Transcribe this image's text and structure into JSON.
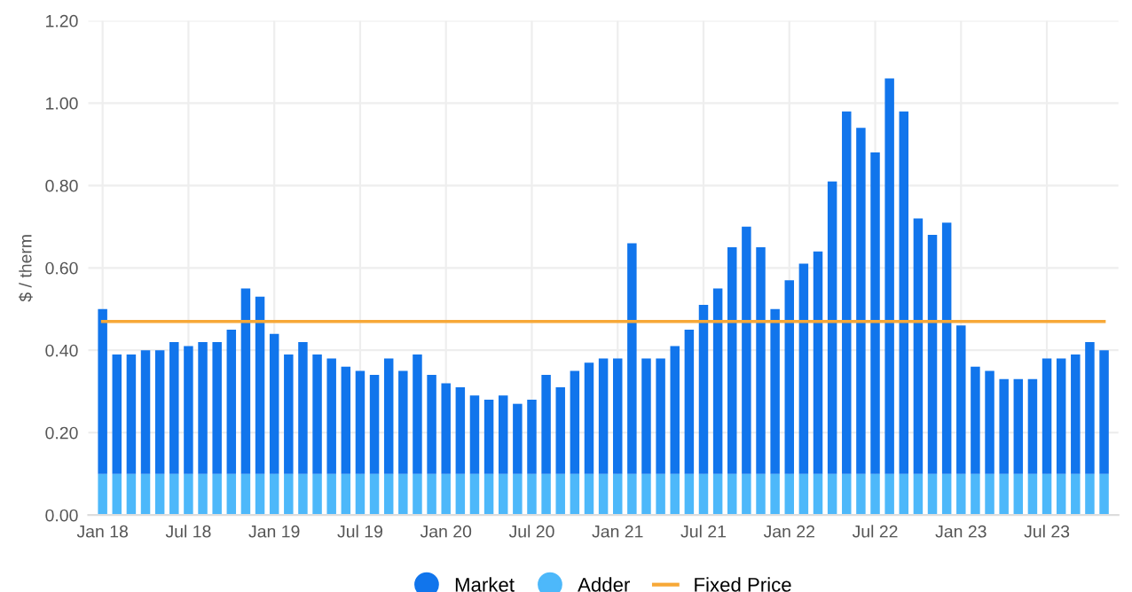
{
  "chart_data": {
    "type": "bar",
    "stacked": true,
    "ylabel": "$ / therm",
    "categories": [
      "Jan 18",
      null,
      null,
      null,
      null,
      null,
      "Jul 18",
      null,
      null,
      null,
      null,
      null,
      "Jan 19",
      null,
      null,
      null,
      null,
      null,
      "Jul 19",
      null,
      null,
      null,
      null,
      null,
      "Jan 20",
      null,
      null,
      null,
      null,
      null,
      "Jul 20",
      null,
      null,
      null,
      null,
      null,
      "Jan 21",
      null,
      null,
      null,
      null,
      null,
      "Jul 21",
      null,
      null,
      null,
      null,
      null,
      "Jan 22",
      null,
      null,
      null,
      null,
      null,
      "Jul 22",
      null,
      null,
      null,
      null,
      null,
      "Jan 23",
      null,
      null,
      null,
      null,
      null,
      "Jul 23",
      null,
      null,
      null,
      null
    ],
    "series": [
      {
        "name": "Adder",
        "color": "#4db8fa",
        "values": [
          0.1,
          0.1,
          0.1,
          0.1,
          0.1,
          0.1,
          0.1,
          0.1,
          0.1,
          0.1,
          0.1,
          0.1,
          0.1,
          0.1,
          0.1,
          0.1,
          0.1,
          0.1,
          0.1,
          0.1,
          0.1,
          0.1,
          0.1,
          0.1,
          0.1,
          0.1,
          0.1,
          0.1,
          0.1,
          0.1,
          0.1,
          0.1,
          0.1,
          0.1,
          0.1,
          0.1,
          0.1,
          0.1,
          0.1,
          0.1,
          0.1,
          0.1,
          0.1,
          0.1,
          0.1,
          0.1,
          0.1,
          0.1,
          0.1,
          0.1,
          0.1,
          0.1,
          0.1,
          0.1,
          0.1,
          0.1,
          0.1,
          0.1,
          0.1,
          0.1,
          0.1,
          0.1,
          0.1,
          0.1,
          0.1,
          0.1,
          0.1,
          0.1,
          0.1,
          0.1,
          0.1
        ]
      },
      {
        "name": "Market",
        "color": "#1175ec",
        "values": [
          0.4,
          0.29,
          0.29,
          0.3,
          0.3,
          0.32,
          0.31,
          0.32,
          0.32,
          0.35,
          0.45,
          0.43,
          0.34,
          0.29,
          0.32,
          0.29,
          0.28,
          0.26,
          0.25,
          0.24,
          0.28,
          0.25,
          0.29,
          0.24,
          0.22,
          0.21,
          0.19,
          0.18,
          0.19,
          0.17,
          0.18,
          0.24,
          0.21,
          0.25,
          0.27,
          0.28,
          0.28,
          0.56,
          0.28,
          0.28,
          0.31,
          0.35,
          0.41,
          0.45,
          0.55,
          0.6,
          0.55,
          0.4,
          0.47,
          0.51,
          0.54,
          0.71,
          0.88,
          0.84,
          0.78,
          0.96,
          0.88,
          0.62,
          0.58,
          0.61,
          0.36,
          0.26,
          0.25,
          0.23,
          0.23,
          0.23,
          0.28,
          0.28,
          0.29,
          0.32,
          0.3
        ]
      },
      {
        "name": "Fixed Price",
        "type": "line",
        "color": "#f7a837",
        "values": [
          0.47,
          0.47,
          0.47,
          0.47,
          0.47,
          0.47,
          0.47,
          0.47,
          0.47,
          0.47,
          0.47,
          0.47,
          0.47,
          0.47,
          0.47,
          0.47,
          0.47,
          0.47,
          0.47,
          0.47,
          0.47,
          0.47,
          0.47,
          0.47,
          0.47,
          0.47,
          0.47,
          0.47,
          0.47,
          0.47,
          0.47,
          0.47,
          0.47,
          0.47,
          0.47,
          0.47,
          0.47,
          0.47,
          0.47,
          0.47,
          0.47,
          0.47,
          0.47,
          0.47,
          0.47,
          0.47,
          0.47,
          0.47,
          0.47,
          0.47,
          0.47,
          0.47,
          0.47,
          0.47,
          0.47,
          0.47,
          0.47,
          0.47,
          0.47,
          0.47,
          0.47,
          0.47,
          0.47,
          0.47,
          0.47,
          0.47,
          0.47,
          0.47,
          0.47,
          0.47,
          0.47
        ]
      }
    ],
    "ylim": [
      0,
      1.2
    ],
    "yticks": [
      {
        "value": 0,
        "label": "0.00"
      },
      {
        "value": 0.2,
        "label": "0.20"
      },
      {
        "value": 0.4,
        "label": "0.40"
      },
      {
        "value": 0.6,
        "label": "0.60"
      },
      {
        "value": 0.8,
        "label": "0.80"
      },
      {
        "value": 1.0,
        "label": "1.00"
      },
      {
        "value": 1.2,
        "label": "1.20"
      }
    ],
    "grid": true,
    "legend": "bottom"
  }
}
